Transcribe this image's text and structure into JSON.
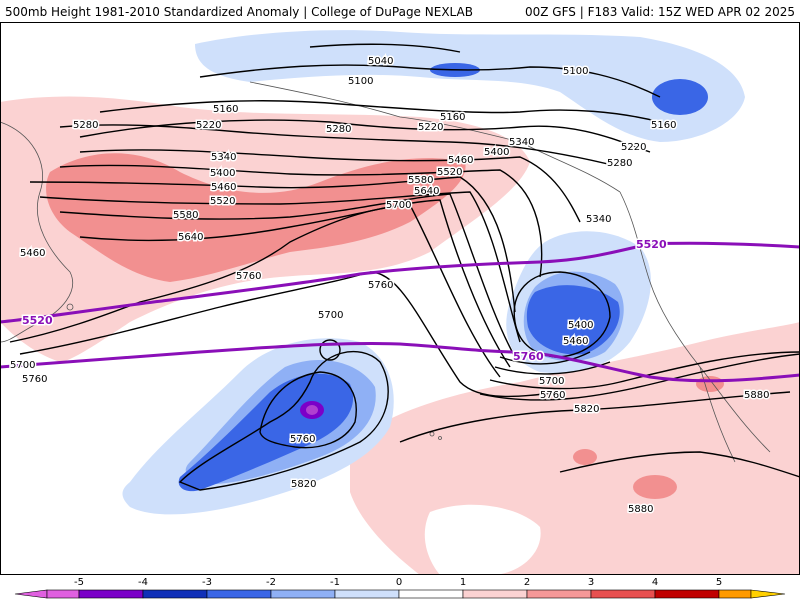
{
  "header": {
    "left_title": "500mb Height 1981-2010 Standardized Anomaly | College of DuPage NEXLAB",
    "right_title": "00Z GFS | F183 Valid: 15Z WED APR 02 2025"
  },
  "map": {
    "contour_labels": [
      "5040",
      "5100",
      "5100",
      "5160",
      "5160",
      "5160",
      "5220",
      "5220",
      "5220",
      "5280",
      "5280",
      "5280",
      "5340",
      "5340",
      "5340",
      "5400",
      "5400",
      "5400",
      "5460",
      "5460",
      "5460",
      "5520",
      "5520",
      "5580",
      "5580",
      "5640",
      "5640",
      "5700",
      "5700",
      "5700",
      "5760",
      "5760",
      "5760",
      "5760",
      "5820",
      "5820",
      "5880",
      "5880",
      "5700",
      "5760",
      "5460"
    ],
    "highlight_labels": [
      "5520",
      "5520",
      "5760"
    ]
  },
  "colorbar": {
    "ticks": [
      "-5",
      "-4",
      "-3",
      "-2",
      "-1",
      "0",
      "1",
      "2",
      "3",
      "4",
      "5"
    ],
    "colors": [
      "#e060e0",
      "#7b00c8",
      "#1030b8",
      "#3a66e6",
      "#8fb0f5",
      "#cfe0fb",
      "#ffffff",
      "#fbd2d2",
      "#f59898",
      "#e85050",
      "#c00000",
      "#ff9a00",
      "#ffd000"
    ]
  }
}
